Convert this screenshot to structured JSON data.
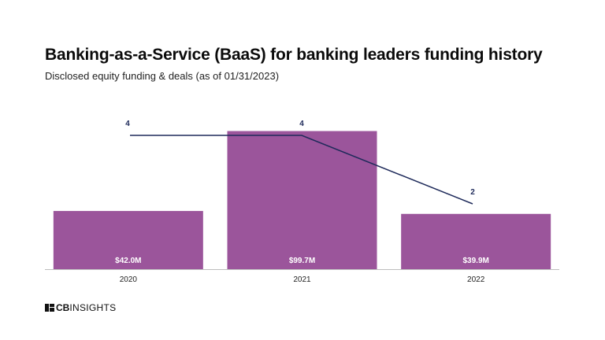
{
  "chart_data": {
    "type": "bar",
    "title": "Banking-as-a-Service (BaaS) for banking leaders funding history",
    "subtitle": "Disclosed equity funding & deals (as of 01/31/2023)",
    "categories": [
      "2020",
      "2021",
      "2022"
    ],
    "series": [
      {
        "type": "bar",
        "values": [
          42.0,
          99.7,
          39.9
        ],
        "labels": [
          "$42.0M",
          "$99.7M",
          "$39.9M"
        ],
        "color": "#9b559b"
      },
      {
        "type": "line",
        "values": [
          4,
          4,
          2
        ],
        "labels": [
          "4",
          "4",
          "2"
        ],
        "color": "#1e2a5a"
      }
    ],
    "funding_range": [
      0,
      100
    ],
    "deals_range": [
      0,
      5.6
    ],
    "grid": false,
    "legend": "none"
  },
  "brand": {
    "logo_text_bold": "CB",
    "logo_text": "INSIGHTS"
  }
}
